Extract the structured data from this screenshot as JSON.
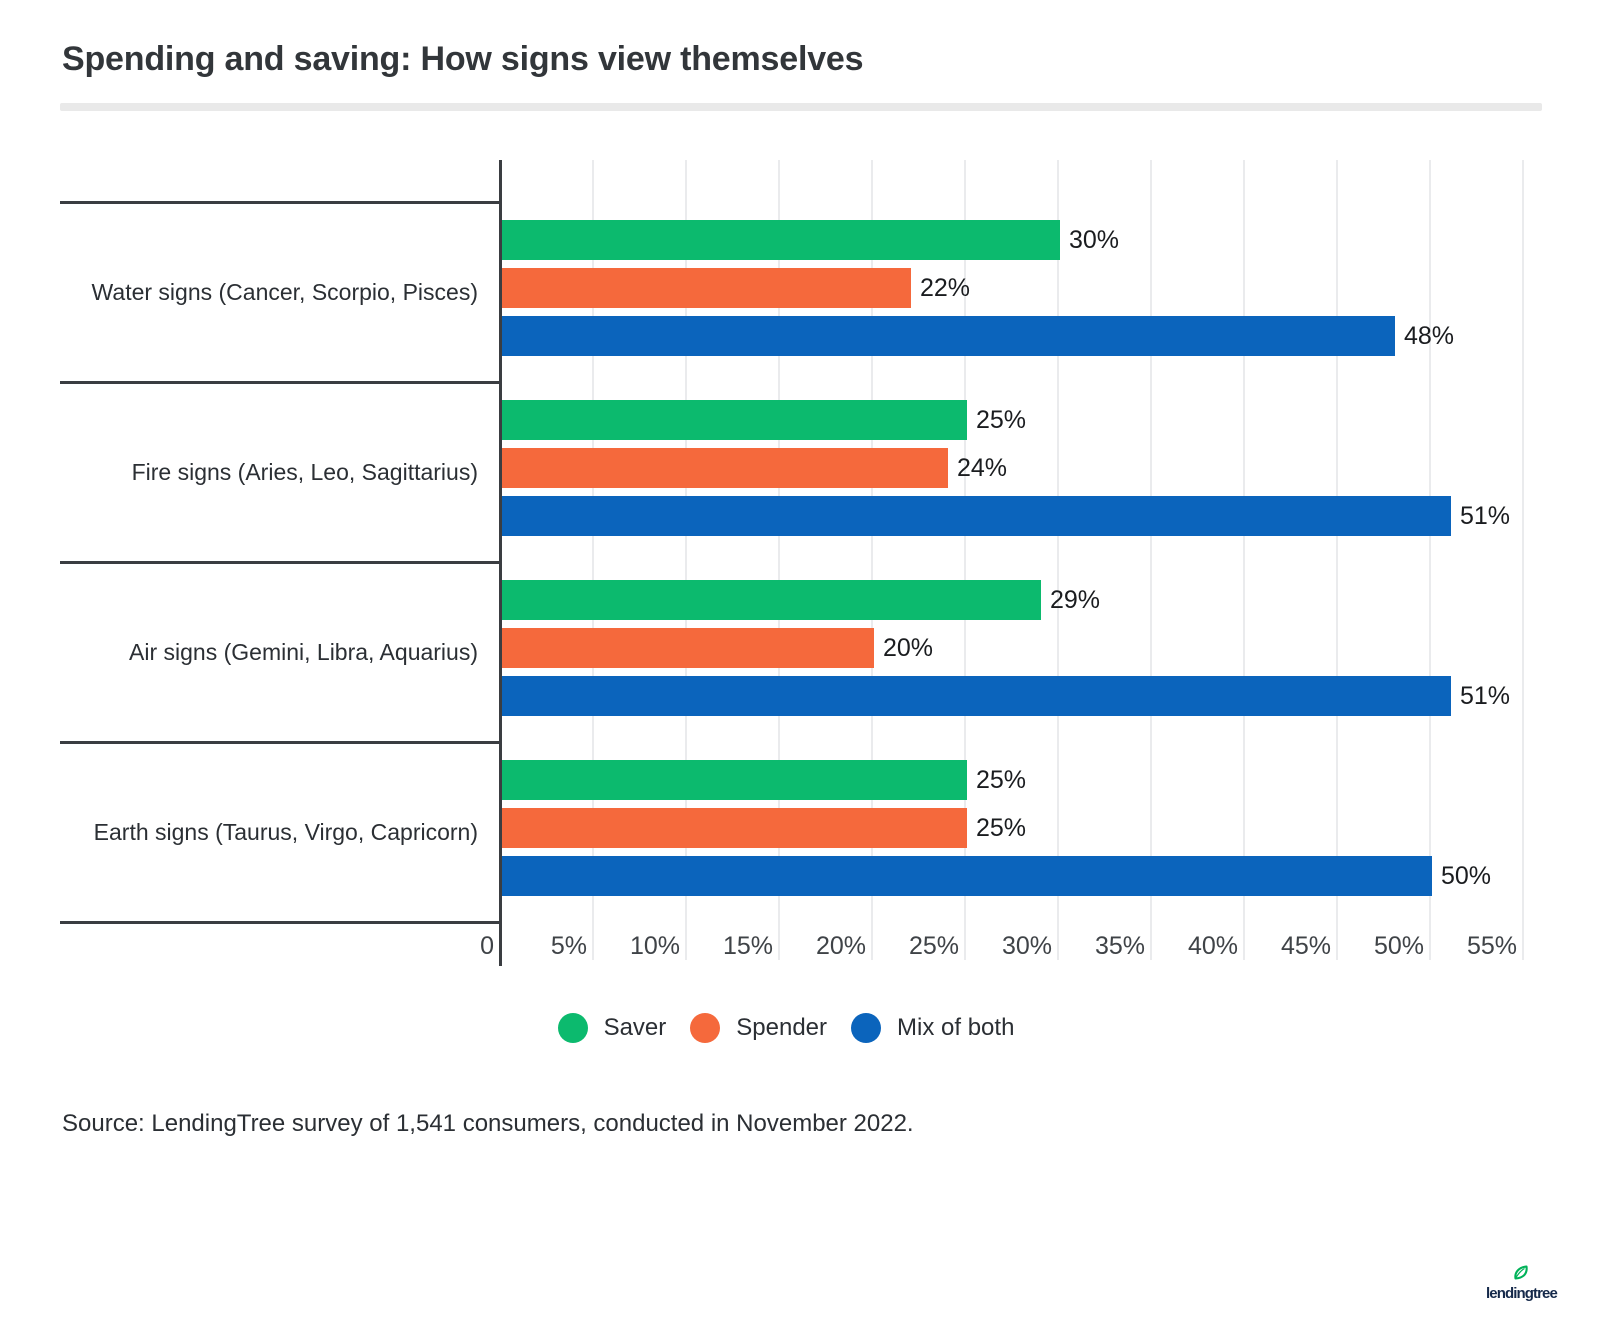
{
  "page": {
    "title": "Spending and saving: How signs view themselves",
    "source": "Source: LendingTree survey of 1,541 consumers, conducted in November 2022.",
    "logo_text": "lendingtree"
  },
  "colors": {
    "saver_green": "#0cba6e",
    "spender_orange": "#f5693c",
    "mix_blue": "#0b64bc",
    "axis_dark": "#3a3d41",
    "gridline_gray": "#eaebed",
    "title_rule_gray": "#e9e9e9",
    "logo_navy": "#15294a",
    "logo_leaf_green": "#00b259"
  },
  "chart_data": {
    "type": "bar",
    "orientation": "horizontal",
    "title": "Spending and saving: How signs view themselves",
    "categories": [
      "Water signs (Cancer, Scorpio, Pisces)",
      "Fire signs (Aries, Leo, Sagittarius)",
      "Air signs (Gemini, Libra, Aquarius)",
      "Earth signs (Taurus, Virgo, Capricorn)"
    ],
    "series": [
      {
        "name": "Saver",
        "color": "#0cba6e",
        "values": [
          30,
          25,
          29,
          25
        ]
      },
      {
        "name": "Spender",
        "color": "#f5693c",
        "values": [
          22,
          24,
          20,
          25
        ]
      },
      {
        "name": "Mix of both",
        "color": "#0b64bc",
        "values": [
          48,
          51,
          51,
          50
        ]
      }
    ],
    "value_suffix": "%",
    "x_ticks": [
      {
        "label": "0",
        "value": 0
      },
      {
        "label": "5%",
        "value": 5
      },
      {
        "label": "10%",
        "value": 10
      },
      {
        "label": "15%",
        "value": 15
      },
      {
        "label": "20%",
        "value": 20
      },
      {
        "label": "25%",
        "value": 25
      },
      {
        "label": "30%",
        "value": 30
      },
      {
        "label": "35%",
        "value": 35
      },
      {
        "label": "40%",
        "value": 40
      },
      {
        "label": "45%",
        "value": 45
      },
      {
        "label": "50%",
        "value": 50
      },
      {
        "label": "55%",
        "value": 55
      }
    ],
    "xlim": [
      0,
      55
    ],
    "grid": true,
    "legend_position": "bottom",
    "source_note": "Source: LendingTree survey of 1,541 consumers, conducted in November 2022."
  }
}
